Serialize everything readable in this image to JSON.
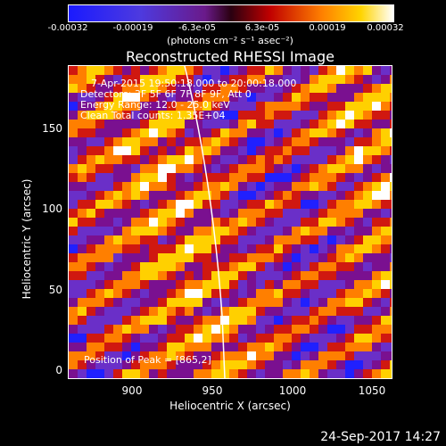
{
  "colorbar": {
    "ticks": [
      "-0.00032",
      "-0.00019",
      "-6.3e-05",
      "6.3e-05",
      "0.00019",
      "0.00032"
    ],
    "units": "(photons cm⁻² s⁻¹ asec⁻²)",
    "colors": [
      "#2020ff",
      "#6a2fc8",
      "#7a1090",
      "#d01810",
      "#ff7f00",
      "#ffd000",
      "#ffffff"
    ]
  },
  "title": "Reconstructed RHESSI Image",
  "annotations": {
    "time": "7-Apr-2015 19:50:18.000 to 20:00:18.000",
    "detectors": "Detectors: 3F 5F 6F 7F 8F 9F, Att 0",
    "energy": "Energy Range: 12.0 - 25.0 keV",
    "clean": "Clean    Total counts: 1.35E+04",
    "peak": "Position of Peak = [865,2]"
  },
  "axes": {
    "xlabel": "Heliocentric X (arcsec)",
    "ylabel": "Heliocentric Y (arcsec)",
    "xticks": [
      "900",
      "950",
      "1000",
      "1050"
    ],
    "yticks": [
      "0",
      "50",
      "100",
      "150"
    ],
    "xlim": [
      862,
      1054
    ],
    "ylim": [
      -3,
      181
    ]
  },
  "footer": {
    "timestamp": "24-Sep-2017 14:27"
  }
}
